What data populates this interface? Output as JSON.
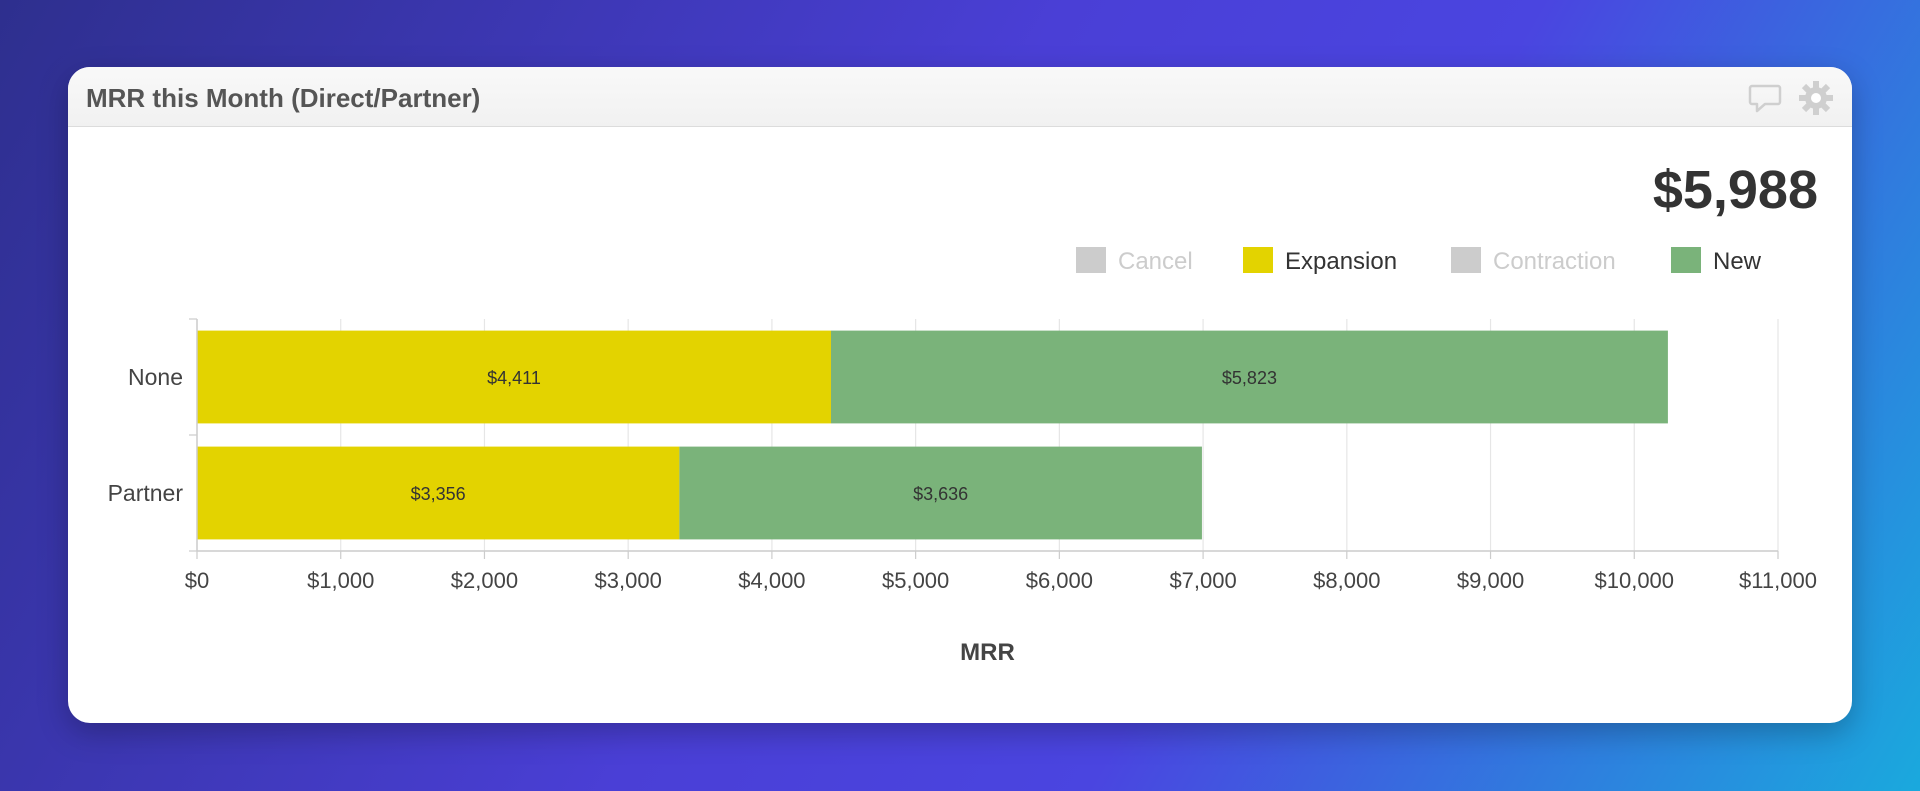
{
  "widget": {
    "title": "MRR this Month (Direct/Partner)",
    "total": "$5,988",
    "comment_icon": "comment-icon",
    "settings_icon": "gear-icon"
  },
  "chart_data": {
    "type": "bar",
    "orientation": "horizontal",
    "stacked": true,
    "categories": [
      "None",
      "Partner"
    ],
    "series": [
      {
        "name": "Cancel",
        "values": [
          0,
          0
        ],
        "color": "#cccccc",
        "legend_disabled": true
      },
      {
        "name": "Expansion",
        "values": [
          4411,
          3356
        ],
        "color": "#e3d300",
        "labels": [
          "$4,411",
          "$3,356"
        ]
      },
      {
        "name": "Contraction",
        "values": [
          0,
          0
        ],
        "color": "#cccccc",
        "legend_disabled": true
      },
      {
        "name": "New",
        "values": [
          5823,
          3636
        ],
        "color": "#7ab37a",
        "labels": [
          "$5,823",
          "$3,636"
        ]
      }
    ],
    "xlabel": "MRR",
    "xlim": [
      0,
      11000
    ],
    "xticks": [
      "$0",
      "$1,000",
      "$2,000",
      "$3,000",
      "$4,000",
      "$5,000",
      "$6,000",
      "$7,000",
      "$8,000",
      "$9,000",
      "$10,000",
      "$11,000"
    ],
    "grid": true,
    "legend_position": "top-right"
  }
}
